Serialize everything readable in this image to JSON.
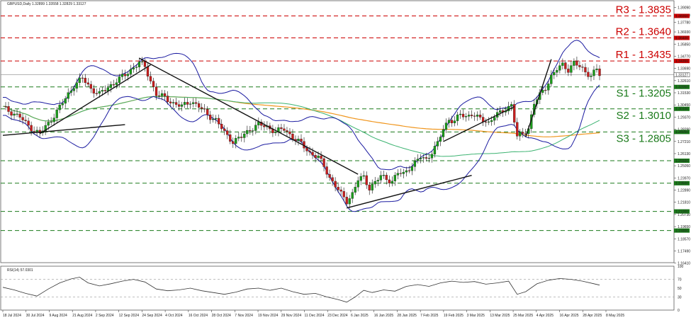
{
  "chart_data": {
    "type": "candlestick",
    "title": "GBPUSD,Daily  1.32899 1.33558 1.32829 1.33127",
    "price_axis": {
      "ylim": [
        1.1645,
        1.397
      ],
      "ticks": [
        "1.39090",
        "1.38400",
        "1.37780",
        "1.36930",
        "1.35850",
        "1.34770",
        "1.33690",
        "1.32610",
        "1.31530",
        "1.30450",
        "1.29370",
        "1.28290",
        "1.27210",
        "1.26130",
        "1.25050",
        "1.23970",
        "1.22890",
        "1.21810",
        "1.20730",
        "1.19650",
        "1.18570",
        "1.17490",
        "1.16410"
      ],
      "current_price": "1.33127"
    },
    "x_labels": [
      "18 Jul 2024",
      "30 Jul 2024",
      "9 Aug 2024",
      "21 Aug 2024",
      "2 Sep 2024",
      "12 Sep 2024",
      "24 Sep 2024",
      "4 Oct 2024",
      "16 Oct 2024",
      "28 Oct 2024",
      "7 Nov 2024",
      "19 Nov 2024",
      "29 Nov 2024",
      "11 Dec 2024",
      "23 Dec 2024",
      "6 Jan 2025",
      "16 Jan 2025",
      "28 Jan 2025",
      "7 Feb 2025",
      "19 Feb 2025",
      "3 Mar 2025",
      "13 Mar 2025",
      "25 Mar 2025",
      "4 Apr 2025",
      "16 Apr 2025",
      "28 Apr 2025",
      "8 May 2025"
    ],
    "levels": [
      {
        "name": "R3",
        "value": 1.3835,
        "label": "R3 - 1.3835",
        "kind": "resistance",
        "color": "#cc0000",
        "axis_label": "1.38350"
      },
      {
        "name": "R2",
        "value": 1.364,
        "label": "R2 - 1.3640",
        "kind": "resistance",
        "color": "#cc0000",
        "axis_label": "1.36400"
      },
      {
        "name": "R1",
        "value": 1.3435,
        "label": "R1 - 1.3435",
        "kind": "resistance",
        "color": "#cc0000",
        "axis_label": "1.34350"
      },
      {
        "name": "S1",
        "value": 1.3205,
        "label": "S1 - 1.3205",
        "kind": "support",
        "color": "#1a7a1a",
        "axis_label": "1.32050"
      },
      {
        "name": "S2",
        "value": 1.301,
        "label": "S2 - 1.3010",
        "kind": "support",
        "color": "#1a7a1a",
        "axis_label": "1.30100"
      },
      {
        "name": "S3",
        "value": 1.2805,
        "label": "S3 - 1.2805",
        "kind": "support",
        "color": "#1a7a1a",
        "axis_label": "1.28050"
      },
      {
        "name": "",
        "value": 1.255,
        "label": "",
        "kind": "support",
        "color": "#1a7a1a",
        "axis_label": "1.25500"
      },
      {
        "name": "",
        "value": 1.235,
        "label": "",
        "kind": "support",
        "color": "#1a7a1a",
        "axis_label": "1.23500"
      },
      {
        "name": "",
        "value": 1.21,
        "label": "",
        "kind": "support",
        "color": "#1a7a1a",
        "axis_label": "1.21000"
      },
      {
        "name": "",
        "value": 1.193,
        "label": "",
        "kind": "support",
        "color": "#1a7a1a",
        "axis_label": "1.19300"
      }
    ],
    "price_path": [
      [
        0,
        1.302
      ],
      [
        3,
        1.298
      ],
      [
        6,
        1.294
      ],
      [
        8,
        1.288
      ],
      [
        11,
        1.282
      ],
      [
        13,
        1.279
      ],
      [
        16,
        1.288
      ],
      [
        19,
        1.299
      ],
      [
        22,
        1.31
      ],
      [
        25,
        1.322
      ],
      [
        28,
        1.328
      ],
      [
        31,
        1.319
      ],
      [
        34,
        1.314
      ],
      [
        37,
        1.32
      ],
      [
        40,
        1.326
      ],
      [
        43,
        1.331
      ],
      [
        46,
        1.338
      ],
      [
        48,
        1.342
      ],
      [
        50,
        1.338
      ],
      [
        52,
        1.326
      ],
      [
        54,
        1.314
      ],
      [
        57,
        1.311
      ],
      [
        60,
        1.306
      ],
      [
        63,
        1.303
      ],
      [
        66,
        1.308
      ],
      [
        69,
        1.303
      ],
      [
        72,
        1.296
      ],
      [
        75,
        1.291
      ],
      [
        78,
        1.28
      ],
      [
        81,
        1.272
      ],
      [
        84,
        1.276
      ],
      [
        87,
        1.283
      ],
      [
        90,
        1.287
      ],
      [
        93,
        1.285
      ],
      [
        96,
        1.281
      ],
      [
        99,
        1.283
      ],
      [
        102,
        1.276
      ],
      [
        105,
        1.27
      ],
      [
        108,
        1.262
      ],
      [
        111,
        1.258
      ],
      [
        113,
        1.25
      ],
      [
        115,
        1.24
      ],
      [
        117,
        1.233
      ],
      [
        119,
        1.225
      ],
      [
        121,
        1.219
      ],
      [
        123,
        1.226
      ],
      [
        125,
        1.238
      ],
      [
        127,
        1.24
      ],
      [
        129,
        1.231
      ],
      [
        131,
        1.236
      ],
      [
        133,
        1.241
      ],
      [
        135,
        1.239
      ],
      [
        137,
        1.237
      ],
      [
        139,
        1.244
      ],
      [
        141,
        1.243
      ],
      [
        143,
        1.249
      ],
      [
        145,
        1.253
      ],
      [
        147,
        1.258
      ],
      [
        149,
        1.256
      ],
      [
        151,
        1.263
      ],
      [
        153,
        1.27
      ],
      [
        155,
        1.283
      ],
      [
        157,
        1.292
      ],
      [
        159,
        1.29
      ],
      [
        161,
        1.296
      ],
      [
        163,
        1.294
      ],
      [
        165,
        1.297
      ],
      [
        167,
        1.293
      ],
      [
        169,
        1.291
      ],
      [
        171,
        1.289
      ],
      [
        173,
        1.295
      ],
      [
        175,
        1.297
      ],
      [
        177,
        1.301
      ],
      [
        179,
        1.305
      ],
      [
        181,
        1.276
      ],
      [
        183,
        1.279
      ],
      [
        185,
        1.284
      ],
      [
        187,
        1.306
      ],
      [
        189,
        1.313
      ],
      [
        191,
        1.32
      ],
      [
        193,
        1.33
      ],
      [
        195,
        1.336
      ],
      [
        197,
        1.34
      ],
      [
        199,
        1.336
      ],
      [
        201,
        1.342
      ],
      [
        203,
        1.338
      ],
      [
        205,
        1.334
      ],
      [
        207,
        1.331
      ],
      [
        209,
        1.336
      ],
      [
        210,
        1.331
      ]
    ],
    "rsi": {
      "label": "RSI(14) 57.0301",
      "ylim": [
        0,
        100
      ],
      "ticks": [
        "100",
        "70",
        "50",
        "30",
        "0"
      ],
      "values": [
        [
          0,
          52
        ],
        [
          4,
          46
        ],
        [
          8,
          38
        ],
        [
          12,
          32
        ],
        [
          16,
          48
        ],
        [
          20,
          62
        ],
        [
          24,
          71
        ],
        [
          27,
          75
        ],
        [
          30,
          62
        ],
        [
          34,
          55
        ],
        [
          38,
          60
        ],
        [
          42,
          66
        ],
        [
          46,
          70
        ],
        [
          50,
          64
        ],
        [
          54,
          48
        ],
        [
          58,
          44
        ],
        [
          62,
          46
        ],
        [
          66,
          50
        ],
        [
          70,
          44
        ],
        [
          74,
          40
        ],
        [
          78,
          36
        ],
        [
          82,
          41
        ],
        [
          86,
          48
        ],
        [
          90,
          50
        ],
        [
          94,
          45
        ],
        [
          98,
          50
        ],
        [
          102,
          42
        ],
        [
          106,
          36
        ],
        [
          110,
          38
        ],
        [
          114,
          30
        ],
        [
          118,
          24
        ],
        [
          121,
          18
        ],
        [
          124,
          30
        ],
        [
          127,
          45
        ],
        [
          130,
          40
        ],
        [
          134,
          46
        ],
        [
          138,
          43
        ],
        [
          142,
          54
        ],
        [
          146,
          58
        ],
        [
          150,
          54
        ],
        [
          154,
          62
        ],
        [
          158,
          66
        ],
        [
          162,
          63
        ],
        [
          166,
          65
        ],
        [
          170,
          59
        ],
        [
          174,
          62
        ],
        [
          178,
          66
        ],
        [
          181,
          36
        ],
        [
          184,
          42
        ],
        [
          188,
          60
        ],
        [
          192,
          68
        ],
        [
          196,
          72
        ],
        [
          200,
          70
        ],
        [
          204,
          66
        ],
        [
          208,
          60
        ],
        [
          210,
          57
        ]
      ]
    }
  }
}
